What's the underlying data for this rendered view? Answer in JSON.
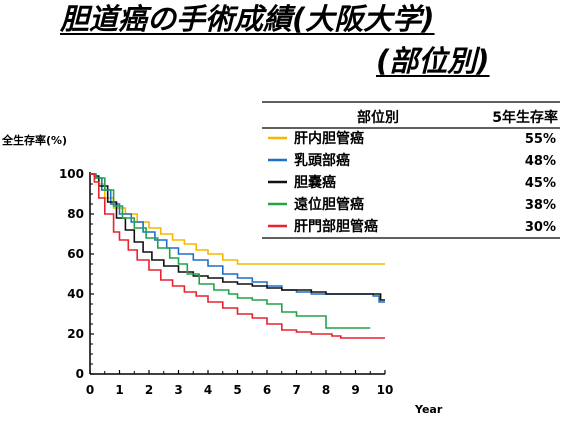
{
  "title": {
    "line1": "胆道癌の手術成績(大阪大学)",
    "line2": "(部位別)"
  },
  "chart_data": {
    "type": "line",
    "ylabel": "全生存率(%)",
    "xlabel": "Year",
    "xlim": [
      0,
      10
    ],
    "ylim": [
      0,
      100
    ],
    "xticks": [
      0,
      1,
      2,
      3,
      4,
      5,
      6,
      7,
      8,
      9,
      10
    ],
    "yticks": [
      0,
      20,
      40,
      60,
      80,
      100
    ],
    "grid": false,
    "legend_placement": "top-right",
    "legend_header": {
      "name": "部位別",
      "value": "5年生存率"
    },
    "series": [
      {
        "name": "肝内胆管癌",
        "five_year_survival": "55%",
        "color": "#f5b800",
        "points": [
          [
            0,
            100
          ],
          [
            0.15,
            98
          ],
          [
            0.3,
            95
          ],
          [
            0.5,
            88
          ],
          [
            0.8,
            83
          ],
          [
            1.2,
            80
          ],
          [
            1.6,
            76
          ],
          [
            2.0,
            73
          ],
          [
            2.4,
            70
          ],
          [
            2.8,
            67
          ],
          [
            3.2,
            65
          ],
          [
            3.6,
            62
          ],
          [
            4.0,
            60
          ],
          [
            4.5,
            57
          ],
          [
            5.0,
            55
          ],
          [
            5.3,
            55
          ],
          [
            6.0,
            55
          ],
          [
            7.0,
            55
          ],
          [
            8.0,
            55
          ],
          [
            9.0,
            55
          ],
          [
            10.0,
            55
          ]
        ]
      },
      {
        "name": "乳頭部癌",
        "five_year_survival": "48%",
        "color": "#1f6fc5",
        "points": [
          [
            0,
            100
          ],
          [
            0.2,
            98
          ],
          [
            0.4,
            92
          ],
          [
            0.7,
            85
          ],
          [
            1.0,
            80
          ],
          [
            1.4,
            76
          ],
          [
            1.8,
            71
          ],
          [
            2.2,
            67
          ],
          [
            2.6,
            63
          ],
          [
            3.0,
            60
          ],
          [
            3.5,
            57
          ],
          [
            4.0,
            54
          ],
          [
            4.5,
            50
          ],
          [
            5.0,
            48
          ],
          [
            5.5,
            46
          ],
          [
            6.0,
            44
          ],
          [
            6.5,
            42
          ],
          [
            7.0,
            41
          ],
          [
            7.5,
            40
          ],
          [
            8.0,
            40
          ],
          [
            8.5,
            40
          ],
          [
            9.0,
            40
          ],
          [
            9.6,
            39
          ],
          [
            9.8,
            36
          ],
          [
            10.0,
            36
          ]
        ]
      },
      {
        "name": "胆嚢癌",
        "five_year_survival": "45%",
        "color": "#111111",
        "points": [
          [
            0,
            100
          ],
          [
            0.15,
            99
          ],
          [
            0.3,
            94
          ],
          [
            0.6,
            86
          ],
          [
            0.9,
            78
          ],
          [
            1.2,
            72
          ],
          [
            1.5,
            66
          ],
          [
            1.8,
            61
          ],
          [
            2.1,
            57
          ],
          [
            2.5,
            54
          ],
          [
            3.0,
            51
          ],
          [
            3.5,
            49
          ],
          [
            4.0,
            48
          ],
          [
            4.5,
            46
          ],
          [
            5.0,
            45
          ],
          [
            5.5,
            44
          ],
          [
            6.0,
            43
          ],
          [
            6.5,
            42
          ],
          [
            7.0,
            42
          ],
          [
            7.5,
            41
          ],
          [
            8.0,
            40
          ],
          [
            8.5,
            40
          ],
          [
            9.0,
            40
          ],
          [
            9.5,
            40
          ],
          [
            9.7,
            40
          ],
          [
            9.85,
            37
          ],
          [
            10.0,
            37
          ]
        ]
      },
      {
        "name": "遠位胆管癌",
        "five_year_survival": "38%",
        "color": "#22a34a",
        "points": [
          [
            0,
            100
          ],
          [
            0.2,
            98
          ],
          [
            0.5,
            92
          ],
          [
            0.8,
            84
          ],
          [
            1.1,
            78
          ],
          [
            1.5,
            73
          ],
          [
            1.9,
            68
          ],
          [
            2.3,
            63
          ],
          [
            2.7,
            58
          ],
          [
            3.0,
            55
          ],
          [
            3.3,
            50
          ],
          [
            3.7,
            45
          ],
          [
            4.2,
            42
          ],
          [
            4.7,
            40
          ],
          [
            5.0,
            38
          ],
          [
            5.5,
            37
          ],
          [
            6.0,
            35
          ],
          [
            6.5,
            31
          ],
          [
            7.0,
            29
          ],
          [
            7.5,
            29
          ],
          [
            7.9,
            29
          ],
          [
            8.0,
            23
          ],
          [
            8.5,
            23
          ],
          [
            9.0,
            23
          ],
          [
            9.5,
            23
          ]
        ]
      },
      {
        "name": "肝門部胆管癌",
        "five_year_survival": "30%",
        "color": "#e8232f",
        "points": [
          [
            0,
            100
          ],
          [
            0.15,
            96
          ],
          [
            0.3,
            88
          ],
          [
            0.5,
            80
          ],
          [
            0.8,
            71
          ],
          [
            1.0,
            67
          ],
          [
            1.3,
            62
          ],
          [
            1.6,
            57
          ],
          [
            2.0,
            52
          ],
          [
            2.4,
            47
          ],
          [
            2.8,
            44
          ],
          [
            3.2,
            41
          ],
          [
            3.6,
            39
          ],
          [
            4.0,
            36
          ],
          [
            4.5,
            33
          ],
          [
            5.0,
            30
          ],
          [
            5.5,
            28
          ],
          [
            6.0,
            25
          ],
          [
            6.5,
            22
          ],
          [
            7.0,
            21
          ],
          [
            7.5,
            20
          ],
          [
            8.0,
            20
          ],
          [
            8.2,
            19
          ],
          [
            8.5,
            18
          ],
          [
            9.0,
            18
          ],
          [
            9.5,
            18
          ],
          [
            10.0,
            18
          ]
        ]
      }
    ]
  }
}
